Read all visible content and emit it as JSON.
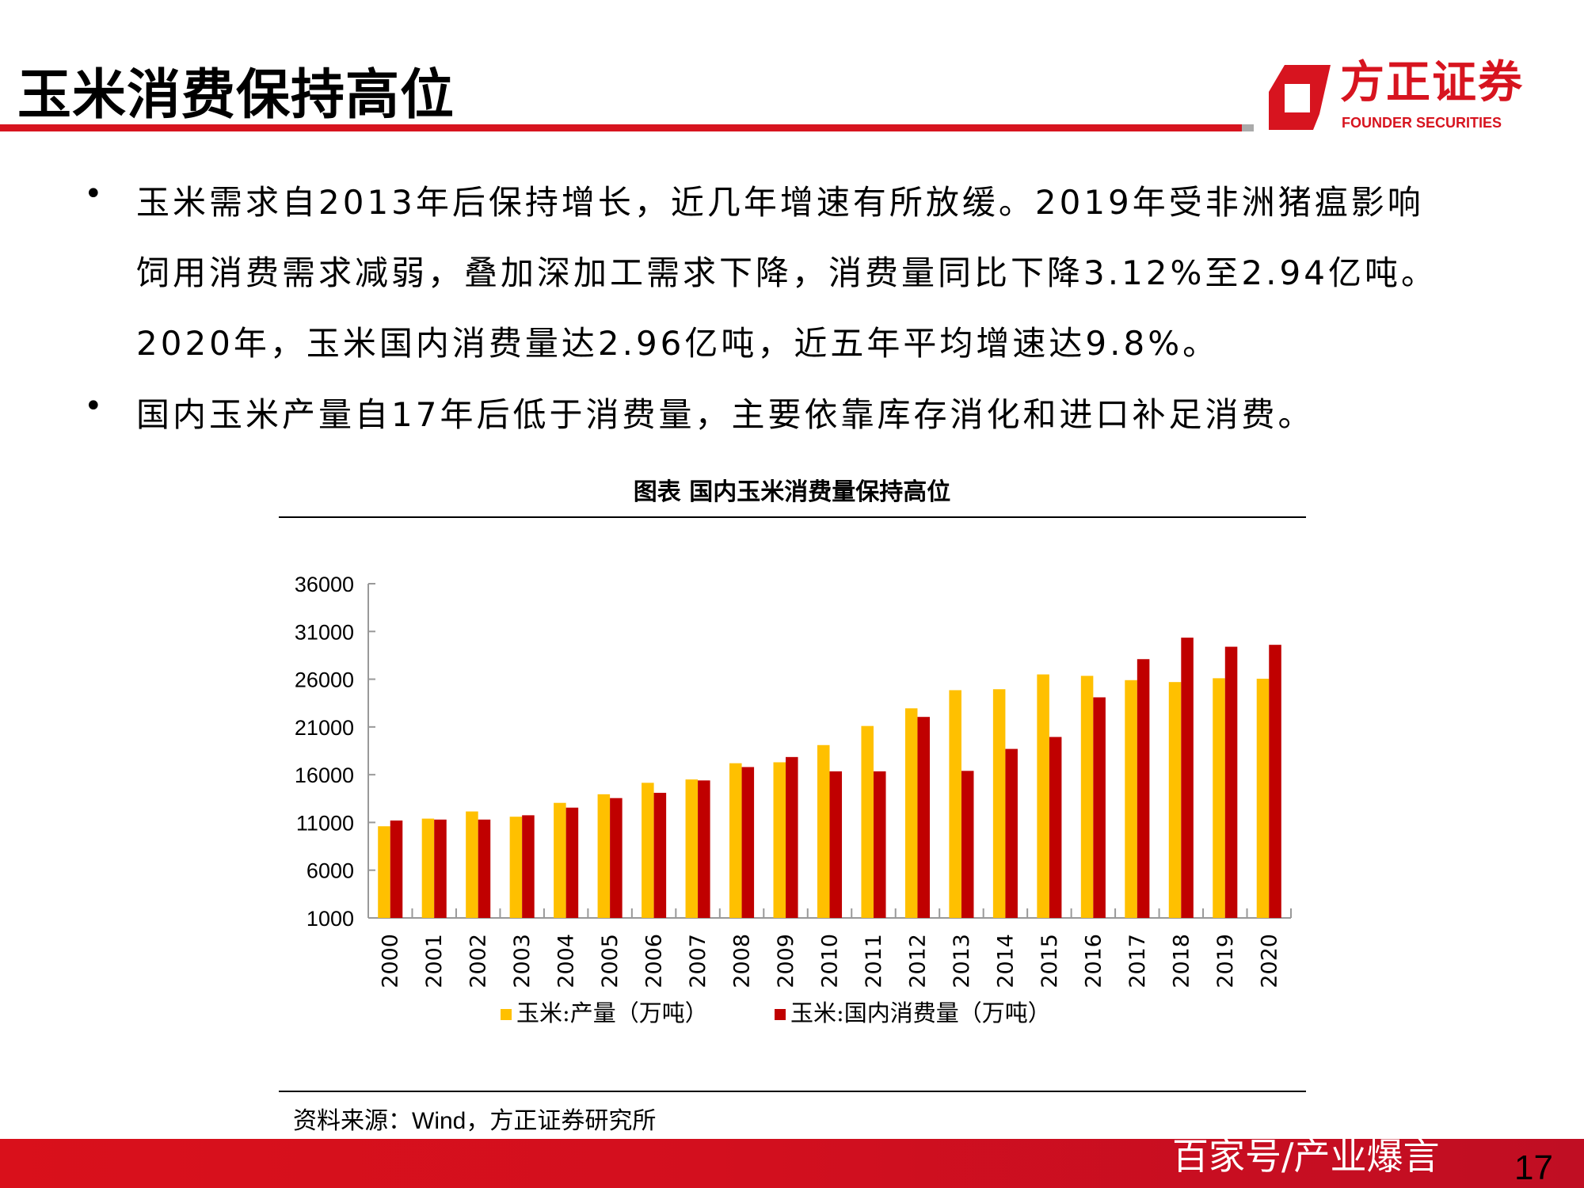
{
  "header": {
    "title": "玉米消费保持高位",
    "logo_cn": "方正证券",
    "logo_en": "FOUNDER SECURITIES",
    "brand_color": "#d7141f"
  },
  "bullets": [
    {
      "lines": [
        "玉米需求自2013年后保持增长，近几年增速有所放缓。2019年受非洲猪瘟影响",
        "饲用消费需求减弱，叠加深加工需求下降，消费量同比下降3.12%至2.94亿吨。",
        "2020年，玉米国内消费量达2.96亿吨，近五年平均增速达9.8%。"
      ]
    },
    {
      "lines": [
        "国内玉米产量自17年后低于消费量，主要依靠库存消化和进口补足消费。"
      ]
    }
  ],
  "chart_data": {
    "type": "bar",
    "title": "图表  国内玉米消费量保持高位",
    "categories": [
      "2000",
      "2001",
      "2002",
      "2003",
      "2004",
      "2005",
      "2006",
      "2007",
      "2008",
      "2009",
      "2010",
      "2011",
      "2012",
      "2013",
      "2014",
      "2015",
      "2016",
      "2017",
      "2018",
      "2019",
      "2020"
    ],
    "series": [
      {
        "name": "玉米:产量（万吨）",
        "color": "#ffc000",
        "values": [
          10600,
          11400,
          12150,
          11600,
          13050,
          13950,
          15150,
          15500,
          17200,
          17300,
          19100,
          21100,
          22950,
          24850,
          24950,
          26500,
          26350,
          25900,
          25700,
          26100,
          26050
        ]
      },
      {
        "name": "玉米:国内消费量（万吨）",
        "color": "#c00000",
        "values": [
          11200,
          11300,
          11300,
          11750,
          12550,
          13550,
          14100,
          15400,
          16800,
          17850,
          16350,
          16350,
          22050,
          16400,
          18700,
          19950,
          24100,
          28100,
          30350,
          29400,
          29600
        ]
      }
    ],
    "y_ticks": [
      "36000",
      "31000",
      "26000",
      "21000",
      "16000",
      "11000",
      "6000",
      "1000"
    ],
    "ylim": [
      1000,
      36000
    ],
    "grid": false,
    "legend_position": "bottom"
  },
  "source": "资料来源：Wind，方正证券研究所",
  "footer": {
    "watermark": "百家号/产业爆言",
    "page_number": "17"
  }
}
